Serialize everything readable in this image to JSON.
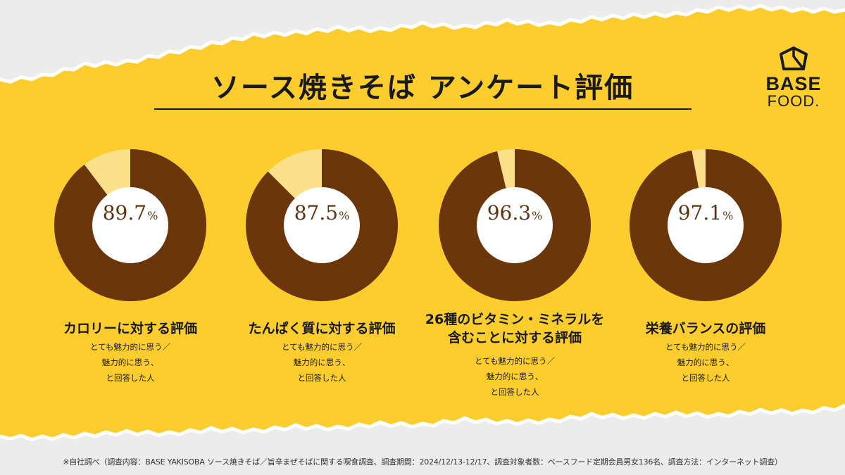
{
  "title": "ソース焼きそば アンケート評価",
  "brand": {
    "line1": "BASE",
    "line2": "FOOD."
  },
  "colors": {
    "main": "#6b3609",
    "remainder": "#fde08a",
    "background": "#fccd2d",
    "center": "#ffffff"
  },
  "chart_data": [
    {
      "type": "pie",
      "title": "カロリーに対する評価",
      "subtitle": "とても魅力的に思う／\n魅力的に思う、\nと回答した人",
      "values": [
        89.7,
        10.3
      ],
      "value_label": "89.7",
      "unit": "%"
    },
    {
      "type": "pie",
      "title": "たんぱく質に対する評価",
      "subtitle": "とても魅力的に思う／\n魅力的に思う、\nと回答した人",
      "values": [
        87.5,
        12.5
      ],
      "value_label": "87.5",
      "unit": "%"
    },
    {
      "type": "pie",
      "title": "26種のビタミン・ミネラルを\n含むことに対する評価",
      "subtitle": "とても魅力的に思う／\n魅力的に思う、\nと回答した人",
      "values": [
        96.3,
        3.7
      ],
      "value_label": "96.3",
      "unit": "%"
    },
    {
      "type": "pie",
      "title": "栄養バランスの評価",
      "subtitle": "とても魅力的に思う／\n魅力的に思う、\nと回答した人",
      "values": [
        97.1,
        2.9
      ],
      "value_label": "97.1",
      "unit": "%"
    }
  ],
  "footnote": "※自社調べ（調査内容：BASE YAKISOBA ソース焼きそば／旨辛まぜそばに関する喫食調査、調査期間：2024/12/13-12/17、調査対象者数：ベースフード定期会員男女136名、調査方法：インターネット調査）"
}
